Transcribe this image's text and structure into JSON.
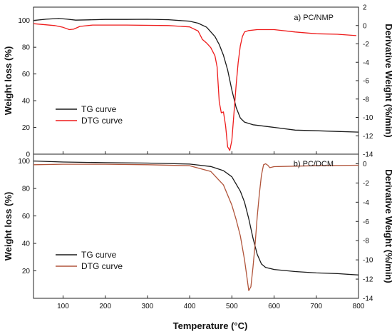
{
  "chart_data": [
    {
      "type": "line",
      "title": "a) PC/NMP",
      "xlabel": "Temperature (°C)",
      "ylabel": "Weight loss (%)",
      "y2label": "Derivative Weight (%/min)",
      "xlim": [
        30,
        800
      ],
      "ylim": [
        0,
        110
      ],
      "y2lim": [
        -14,
        2
      ],
      "xticks": [
        100,
        200,
        300,
        400,
        500,
        600,
        700,
        800
      ],
      "yticks": [
        0,
        20,
        40,
        60,
        80,
        100
      ],
      "y2ticks": [
        2,
        0,
        -2,
        -4,
        -6,
        -8,
        -10,
        -12,
        -14
      ],
      "legend": "lower-left",
      "series": [
        {
          "name": "TG curve",
          "axis": "left",
          "color": "#1a1a1a",
          "x": [
            30,
            60,
            90,
            110,
            130,
            160,
            200,
            250,
            300,
            350,
            400,
            420,
            440,
            460,
            470,
            480,
            490,
            500,
            510,
            520,
            530,
            550,
            600,
            650,
            700,
            750,
            800
          ],
          "y": [
            100,
            101,
            101.5,
            101,
            100.3,
            100.5,
            100.8,
            100.8,
            100.9,
            100.6,
            99.5,
            98,
            95,
            88,
            82,
            74,
            63,
            48,
            35,
            27,
            24,
            22,
            20,
            18,
            17.5,
            17,
            16.5
          ]
        },
        {
          "name": "DTG curve",
          "axis": "right",
          "color": "#ee1c1c",
          "x": [
            30,
            80,
            100,
            115,
            125,
            140,
            170,
            250,
            350,
            400,
            420,
            430,
            440,
            450,
            460,
            465,
            470,
            475,
            480,
            485,
            490,
            495,
            500,
            505,
            510,
            515,
            520,
            525,
            530,
            540,
            560,
            600,
            650,
            700,
            750,
            795
          ],
          "y": [
            0.2,
            0,
            -0.2,
            -0.45,
            -0.4,
            -0.1,
            0.05,
            0.05,
            0,
            -0.15,
            -0.6,
            -1.5,
            -1.9,
            -2.4,
            -3.3,
            -4.5,
            -8.3,
            -9.5,
            -9.4,
            -10.9,
            -13.2,
            -13.6,
            -12.5,
            -9.5,
            -6.5,
            -4,
            -2.2,
            -1.2,
            -0.7,
            -0.55,
            -0.45,
            -0.45,
            -0.7,
            -0.9,
            -0.95,
            -1.1
          ]
        }
      ]
    },
    {
      "type": "line",
      "title": "b) PC/DCM",
      "xlabel": "Temperature (°C)",
      "ylabel": "Weight loss (%)",
      "y2label": "Derivative Weight (%/min)",
      "xlim": [
        30,
        800
      ],
      "ylim": [
        0,
        105
      ],
      "y2lim": [
        -14,
        1
      ],
      "xticks": [
        100,
        200,
        300,
        400,
        500,
        600,
        700,
        800
      ],
      "yticks": [
        20,
        40,
        60,
        80,
        100
      ],
      "y2ticks": [
        0,
        -2,
        -4,
        -6,
        -8,
        -10,
        -12,
        -14
      ],
      "legend": "lower-left",
      "series": [
        {
          "name": "TG curve",
          "axis": "left",
          "color": "#1a1a1a",
          "x": [
            30,
            100,
            200,
            300,
            400,
            450,
            480,
            500,
            520,
            530,
            540,
            550,
            560,
            570,
            580,
            600,
            650,
            700,
            750,
            800
          ],
          "y": [
            100,
            99.3,
            98.8,
            98.5,
            97.8,
            96,
            93,
            88.5,
            78,
            70,
            58,
            44,
            32,
            25,
            22.5,
            21,
            19.5,
            18.5,
            18,
            17
          ]
        },
        {
          "name": "DTG curve",
          "axis": "right",
          "color": "#b0543a",
          "x": [
            30,
            100,
            200,
            300,
            400,
            450,
            480,
            500,
            510,
            520,
            530,
            535,
            540,
            545,
            550,
            555,
            560,
            565,
            570,
            575,
            580,
            585,
            590,
            600,
            650,
            700,
            800
          ],
          "y": [
            -0.1,
            -0.05,
            -0.05,
            -0.1,
            -0.2,
            -0.8,
            -2.2,
            -4.3,
            -5.8,
            -7.5,
            -10,
            -11.6,
            -13.2,
            -12.8,
            -10.8,
            -8.4,
            -5.5,
            -3.2,
            -1.2,
            -0.1,
            0,
            -0.15,
            -0.4,
            -0.3,
            -0.25,
            -0.2,
            -0.15
          ]
        }
      ]
    }
  ]
}
